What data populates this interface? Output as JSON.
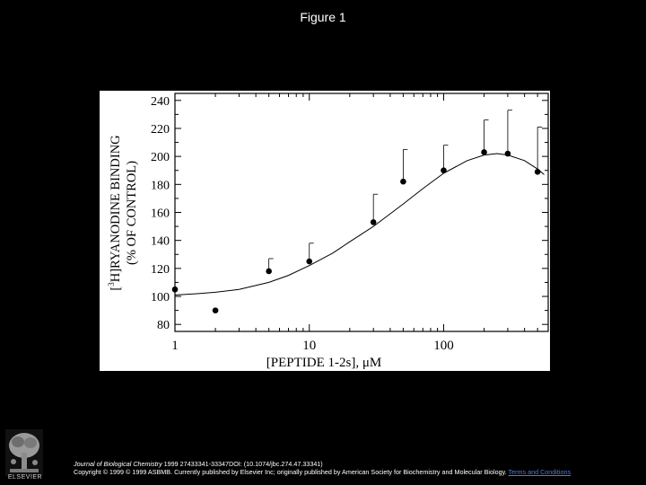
{
  "slide": {
    "title": "Figure 1"
  },
  "citation": {
    "journal": "Journal of Biological Chemistry",
    "details": " 1999 27433341-33347DOI: (10.1074/jbc.274.47.33341)",
    "copyright": "Copyright © 1999 © 1999 ASBMB. Currently published by Elsevier Inc; originally published by American Society for Biochemistry and Molecular Biology.",
    "link": "Terms and Conditions"
  },
  "publisher": {
    "name": "ELSEVIER"
  },
  "chart_data": {
    "type": "scatter",
    "xlabel": "[PEPTIDE 1-2s], μM",
    "ylabel_prefix": "[",
    "ylabel_sup": "3",
    "ylabel_main": "H]RYANODINE BINDING",
    "ylabel_line2": "(% OF CONTROL)",
    "xscale": "log",
    "xlim": [
      1,
      600
    ],
    "ylim": [
      75,
      245
    ],
    "x_ticks": [
      1,
      10,
      100
    ],
    "x_tick_labels": [
      "1",
      "10",
      "100"
    ],
    "y_ticks": [
      80,
      100,
      120,
      140,
      160,
      180,
      200,
      220,
      240
    ],
    "y_tick_labels": [
      "80",
      "100",
      "120",
      "140",
      "160",
      "180",
      "200",
      "220",
      "240"
    ],
    "points": [
      {
        "x": 1,
        "y": 105,
        "err": 0
      },
      {
        "x": 2,
        "y": 90,
        "err": 0
      },
      {
        "x": 5,
        "y": 118,
        "err": 9
      },
      {
        "x": 10,
        "y": 125,
        "err": 13
      },
      {
        "x": 30,
        "y": 153,
        "err": 20
      },
      {
        "x": 50,
        "y": 182,
        "err": 23
      },
      {
        "x": 100,
        "y": 190,
        "err": 18
      },
      {
        "x": 200,
        "y": 203,
        "err": 23
      },
      {
        "x": 300,
        "y": 202,
        "err": 31
      },
      {
        "x": 500,
        "y": 189,
        "err": 32
      }
    ],
    "fit_curve": [
      {
        "x": 1,
        "y": 101
      },
      {
        "x": 1.5,
        "y": 102
      },
      {
        "x": 2,
        "y": 103
      },
      {
        "x": 3,
        "y": 105
      },
      {
        "x": 5,
        "y": 110
      },
      {
        "x": 7,
        "y": 115
      },
      {
        "x": 10,
        "y": 122
      },
      {
        "x": 15,
        "y": 131
      },
      {
        "x": 20,
        "y": 139
      },
      {
        "x": 30,
        "y": 150
      },
      {
        "x": 50,
        "y": 166
      },
      {
        "x": 70,
        "y": 177
      },
      {
        "x": 100,
        "y": 188
      },
      {
        "x": 150,
        "y": 197
      },
      {
        "x": 200,
        "y": 201
      },
      {
        "x": 250,
        "y": 202
      },
      {
        "x": 300,
        "y": 201
      },
      {
        "x": 400,
        "y": 197
      },
      {
        "x": 500,
        "y": 191
      },
      {
        "x": 560,
        "y": 187
      }
    ]
  }
}
